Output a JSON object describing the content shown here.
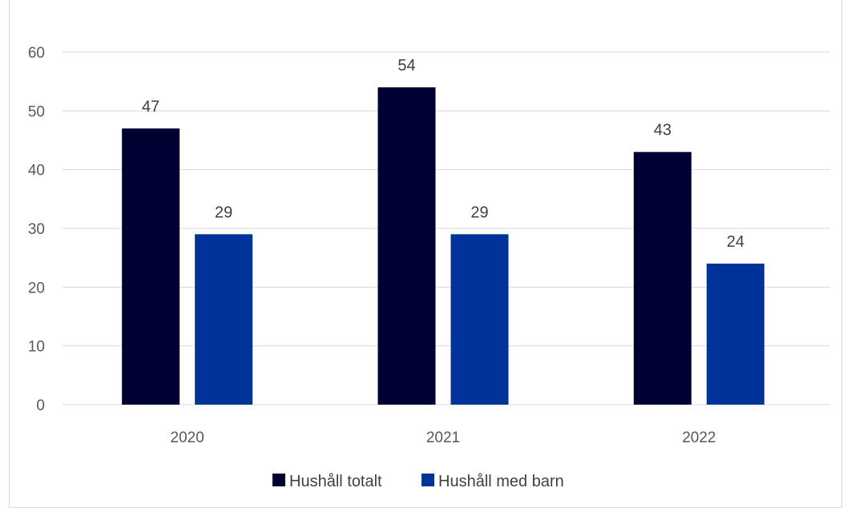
{
  "chart_data": {
    "type": "bar",
    "title": "",
    "xlabel": "",
    "ylabel": "",
    "categories": [
      "2020",
      "2021",
      "2022"
    ],
    "series": [
      {
        "name": "Hushåll totalt",
        "values": [
          47,
          54,
          43
        ],
        "color": "#000033"
      },
      {
        "name": "Hushåll med barn",
        "values": [
          29,
          29,
          24
        ],
        "color": "#003399"
      }
    ],
    "ylim": [
      0,
      60
    ],
    "yticks": [
      0,
      10,
      20,
      30,
      40,
      50,
      60
    ],
    "grid": true,
    "legend_position": "bottom",
    "data_labels": true
  },
  "colors": {
    "gridline": "#d9d9d9",
    "tick_text": "#595959",
    "label_text": "#404040"
  }
}
